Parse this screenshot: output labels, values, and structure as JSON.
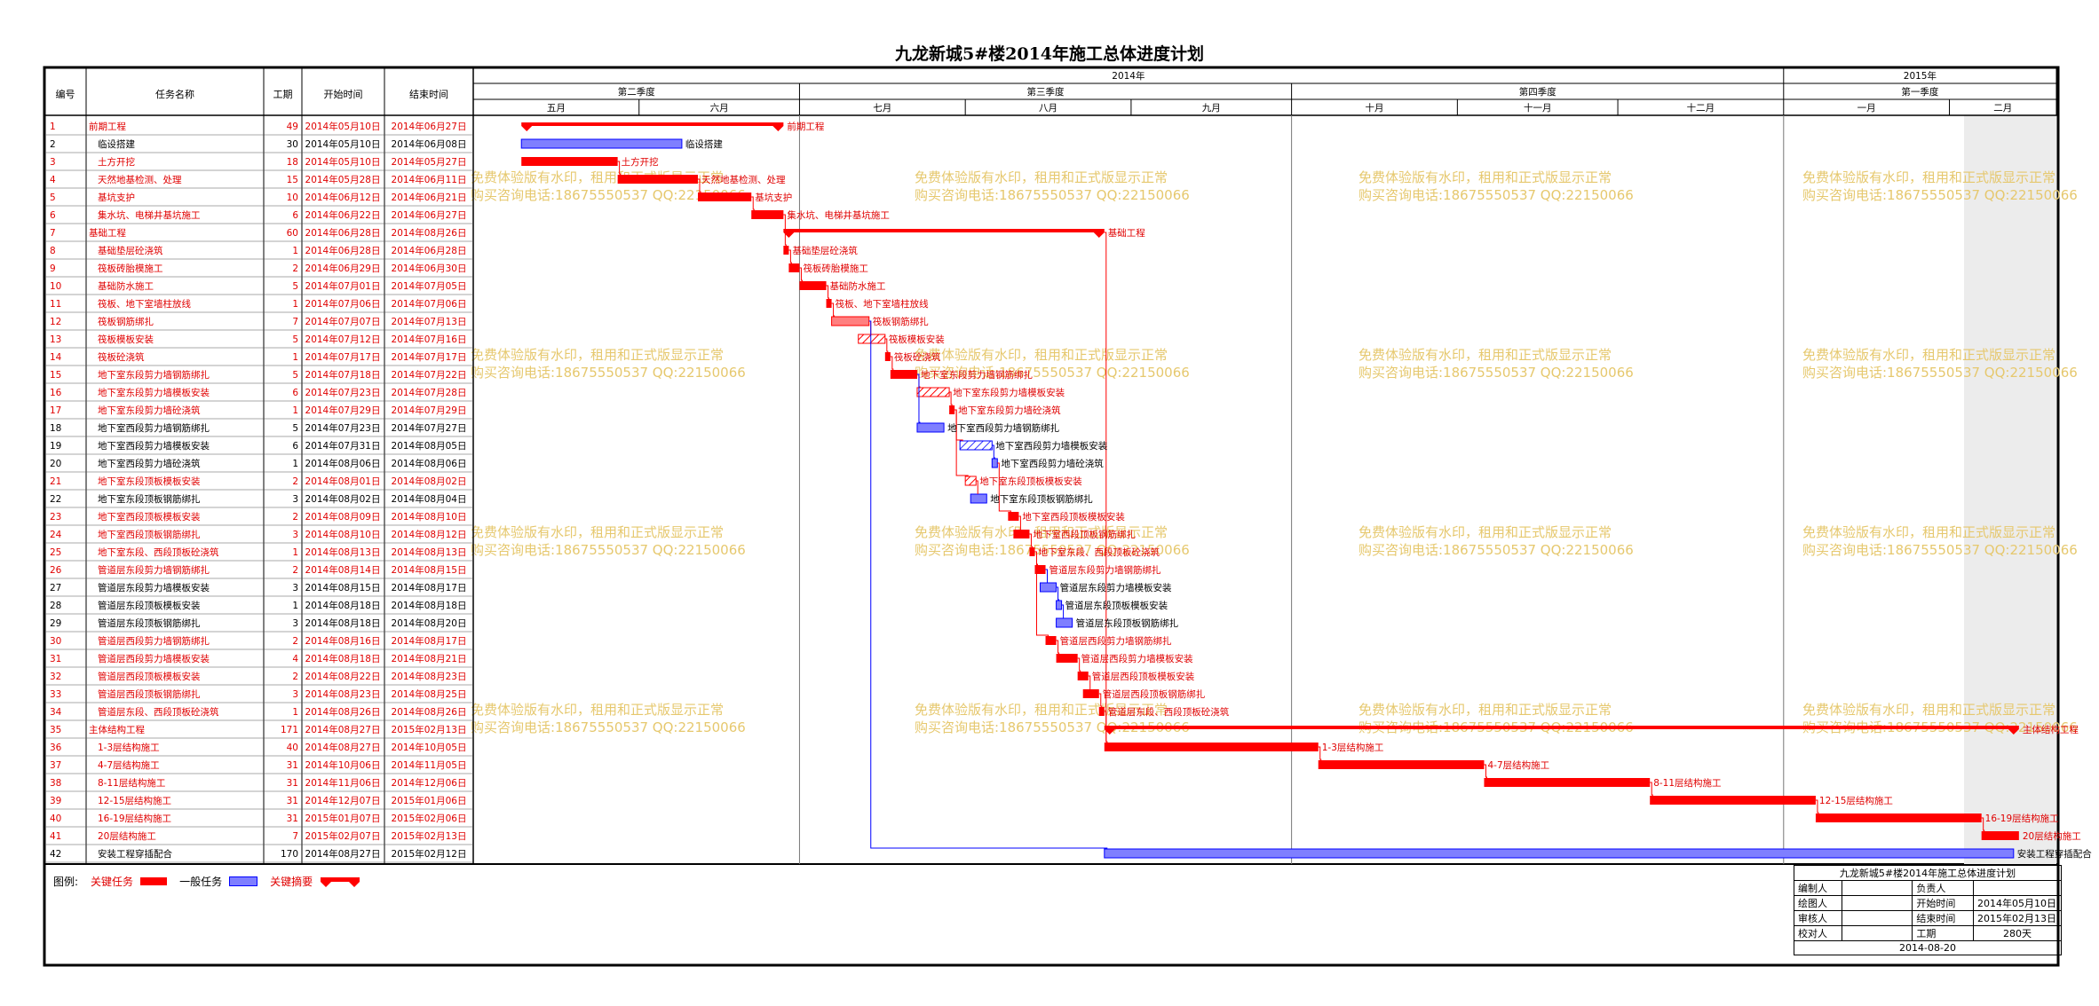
{
  "title": "九龙新城5#楼2014年施工总体进度计划",
  "table_headers": {
    "id": "编号",
    "name": "任务名称",
    "duration": "工期",
    "start": "开始时间",
    "end": "结束时间"
  },
  "timescale": {
    "years": [
      {
        "label": "2014年",
        "from": "2014-04-01",
        "to": "2015-01-01"
      },
      {
        "label": "2015年",
        "from": "2015-01-01",
        "to": "2015-04-01"
      }
    ],
    "quarters": [
      {
        "label": "第二季度",
        "from": "2014-04-01",
        "to": "2014-07-01"
      },
      {
        "label": "第三季度",
        "from": "2014-07-01",
        "to": "2014-10-01"
      },
      {
        "label": "第四季度",
        "from": "2014-10-01",
        "to": "2015-01-01"
      },
      {
        "label": "第一季度",
        "from": "2015-01-01",
        "to": "2015-04-01"
      }
    ],
    "months": [
      {
        "label": "五月",
        "from": "2014-05-01",
        "to": "2014-06-01"
      },
      {
        "label": "六月",
        "from": "2014-06-01",
        "to": "2014-07-01"
      },
      {
        "label": "七月",
        "from": "2014-07-01",
        "to": "2014-08-01"
      },
      {
        "label": "八月",
        "from": "2014-08-01",
        "to": "2014-09-01"
      },
      {
        "label": "九月",
        "from": "2014-09-01",
        "to": "2014-10-01"
      },
      {
        "label": "十月",
        "from": "2014-10-01",
        "to": "2014-11-01"
      },
      {
        "label": "十一月",
        "from": "2014-11-01",
        "to": "2014-12-01"
      },
      {
        "label": "十二月",
        "from": "2014-12-01",
        "to": "2015-01-01"
      },
      {
        "label": "一月",
        "from": "2015-01-01",
        "to": "2015-02-01"
      },
      {
        "label": "二月",
        "from": "2015-02-01",
        "to": "2015-03-01"
      }
    ]
  },
  "chart_data": {
    "type": "gantt",
    "x_range": [
      "2014-05-01",
      "2015-02-21"
    ],
    "tasks": [
      {
        "id": "1",
        "name": "前期工程",
        "duration": "49",
        "start": "2014年05月10日",
        "end": "2014年06月27日",
        "s": "2014-05-10",
        "e": "2014-06-27",
        "kind": "summary",
        "label": "前期工程"
      },
      {
        "id": "2",
        "name": "临设搭建",
        "duration": "30",
        "start": "2014年05月10日",
        "end": "2014年06月08日",
        "s": "2014-05-10",
        "e": "2014-06-08",
        "kind": "normal",
        "label": "临设搭建"
      },
      {
        "id": "3",
        "name": "土方开挖",
        "duration": "18",
        "start": "2014年05月10日",
        "end": "2014年05月27日",
        "s": "2014-05-10",
        "e": "2014-05-27",
        "kind": "critical",
        "label": "土方开挖"
      },
      {
        "id": "4",
        "name": "天然地基检测、处理",
        "duration": "15",
        "start": "2014年05月28日",
        "end": "2014年06月11日",
        "s": "2014-05-28",
        "e": "2014-06-11",
        "kind": "critical",
        "label": "天然地基检测、处理"
      },
      {
        "id": "5",
        "name": "基坑支护",
        "duration": "10",
        "start": "2014年06月12日",
        "end": "2014年06月21日",
        "s": "2014-06-12",
        "e": "2014-06-21",
        "kind": "critical",
        "label": "基坑支护"
      },
      {
        "id": "6",
        "name": "集水坑、电梯井基坑施工",
        "duration": "6",
        "start": "2014年06月22日",
        "end": "2014年06月27日",
        "s": "2014-06-22",
        "e": "2014-06-27",
        "kind": "critical",
        "label": "集水坑、电梯井基坑施工"
      },
      {
        "id": "7",
        "name": "基础工程",
        "duration": "60",
        "start": "2014年06月28日",
        "end": "2014年08月26日",
        "s": "2014-06-28",
        "e": "2014-08-26",
        "kind": "summary",
        "label": "基础工程"
      },
      {
        "id": "8",
        "name": "基础垫层砼浇筑",
        "duration": "1",
        "start": "2014年06月28日",
        "end": "2014年06月28日",
        "s": "2014-06-28",
        "e": "2014-06-28",
        "kind": "critical",
        "label": "基础垫层砼浇筑"
      },
      {
        "id": "9",
        "name": "筏板砖胎模施工",
        "duration": "2",
        "start": "2014年06月29日",
        "end": "2014年06月30日",
        "s": "2014-06-29",
        "e": "2014-06-30",
        "kind": "critical",
        "label": "筏板砖胎模施工"
      },
      {
        "id": "10",
        "name": "基础防水施工",
        "duration": "5",
        "start": "2014年07月01日",
        "end": "2014年07月05日",
        "s": "2014-07-01",
        "e": "2014-07-05",
        "kind": "critical",
        "label": "基础防水施工"
      },
      {
        "id": "11",
        "name": "筏板、地下室墙柱放线",
        "duration": "1",
        "start": "2014年07月06日",
        "end": "2014年07月06日",
        "s": "2014-07-06",
        "e": "2014-07-06",
        "kind": "critical",
        "label": "筏板、地下室墙柱放线"
      },
      {
        "id": "12",
        "name": "筏板钢筋绑扎",
        "duration": "7",
        "start": "2014年07月07日",
        "end": "2014年07月13日",
        "s": "2014-07-07",
        "e": "2014-07-13",
        "kind": "progress",
        "label": "筏板钢筋绑扎"
      },
      {
        "id": "13",
        "name": "筏板模板安装",
        "duration": "5",
        "start": "2014年07月12日",
        "end": "2014年07月16日",
        "s": "2014-07-12",
        "e": "2014-07-16",
        "kind": "hatch",
        "label": "筏板模板安装"
      },
      {
        "id": "14",
        "name": "筏板砼浇筑",
        "duration": "1",
        "start": "2014年07月17日",
        "end": "2014年07月17日",
        "s": "2014-07-17",
        "e": "2014-07-17",
        "kind": "critical",
        "label": "筏板砼浇筑"
      },
      {
        "id": "15",
        "name": "地下室东段剪力墙钢筋绑扎",
        "duration": "5",
        "start": "2014年07月18日",
        "end": "2014年07月22日",
        "s": "2014-07-18",
        "e": "2014-07-22",
        "kind": "critical",
        "label": "地下室东段剪力墙钢筋绑扎"
      },
      {
        "id": "16",
        "name": "地下室东段剪力墙模板安装",
        "duration": "6",
        "start": "2014年07月23日",
        "end": "2014年07月28日",
        "s": "2014-07-23",
        "e": "2014-07-28",
        "kind": "hatch",
        "label": "地下室东段剪力墙模板安装"
      },
      {
        "id": "17",
        "name": "地下室东段剪力墙砼浇筑",
        "duration": "1",
        "start": "2014年07月29日",
        "end": "2014年07月29日",
        "s": "2014-07-29",
        "e": "2014-07-29",
        "kind": "critical",
        "label": "地下室东段剪力墙砼浇筑"
      },
      {
        "id": "18",
        "name": "地下室西段剪力墙钢筋绑扎",
        "duration": "5",
        "start": "2014年07月23日",
        "end": "2014年07月27日",
        "s": "2014-07-23",
        "e": "2014-07-27",
        "kind": "normal",
        "label": "地下室西段剪力墙钢筋绑扎"
      },
      {
        "id": "19",
        "name": "地下室西段剪力墙模板安装",
        "duration": "6",
        "start": "2014年07月31日",
        "end": "2014年08月05日",
        "s": "2014-07-31",
        "e": "2014-08-05",
        "kind": "hatchblue",
        "label": "地下室西段剪力墙模板安装"
      },
      {
        "id": "20",
        "name": "地下室西段剪力墙砼浇筑",
        "duration": "1",
        "start": "2014年08月06日",
        "end": "2014年08月06日",
        "s": "2014-08-06",
        "e": "2014-08-06",
        "kind": "normal",
        "label": "地下室西段剪力墙砼浇筑"
      },
      {
        "id": "21",
        "name": "地下室东段顶板模板安装",
        "duration": "2",
        "start": "2014年08月01日",
        "end": "2014年08月02日",
        "s": "2014-08-01",
        "e": "2014-08-02",
        "kind": "hatch",
        "label": "地下室东段顶板模板安装"
      },
      {
        "id": "22",
        "name": "地下室东段顶板钢筋绑扎",
        "duration": "3",
        "start": "2014年08月02日",
        "end": "2014年08月04日",
        "s": "2014-08-02",
        "e": "2014-08-04",
        "kind": "normal",
        "label": "地下室东段顶板钢筋绑扎"
      },
      {
        "id": "23",
        "name": "地下室西段顶板模板安装",
        "duration": "2",
        "start": "2014年08月09日",
        "end": "2014年08月10日",
        "s": "2014-08-09",
        "e": "2014-08-10",
        "kind": "critical",
        "label": "地下室西段顶板模板安装"
      },
      {
        "id": "24",
        "name": "地下室西段顶板钢筋绑扎",
        "duration": "3",
        "start": "2014年08月10日",
        "end": "2014年08月12日",
        "s": "2014-08-10",
        "e": "2014-08-12",
        "kind": "critical",
        "label": "地下室西段顶板钢筋绑扎"
      },
      {
        "id": "25",
        "name": "地下室东段、西段顶板砼浇筑",
        "duration": "1",
        "start": "2014年08月13日",
        "end": "2014年08月13日",
        "s": "2014-08-13",
        "e": "2014-08-13",
        "kind": "critical",
        "label": "地下室东段、西段顶板砼浇筑"
      },
      {
        "id": "26",
        "name": "管道层东段剪力墙钢筋绑扎",
        "duration": "2",
        "start": "2014年08月14日",
        "end": "2014年08月15日",
        "s": "2014-08-14",
        "e": "2014-08-15",
        "kind": "critical",
        "label": "管道层东段剪力墙钢筋绑扎"
      },
      {
        "id": "27",
        "name": "管道层东段剪力墙模板安装",
        "duration": "3",
        "start": "2014年08月15日",
        "end": "2014年08月17日",
        "s": "2014-08-15",
        "e": "2014-08-17",
        "kind": "normal",
        "label": "管道层东段剪力墙模板安装"
      },
      {
        "id": "28",
        "name": "管道层东段顶板模板安装",
        "duration": "1",
        "start": "2014年08月18日",
        "end": "2014年08月18日",
        "s": "2014-08-18",
        "e": "2014-08-18",
        "kind": "normal",
        "label": "管道层东段顶板模板安装"
      },
      {
        "id": "29",
        "name": "管道层东段顶板钢筋绑扎",
        "duration": "3",
        "start": "2014年08月18日",
        "end": "2014年08月20日",
        "s": "2014-08-18",
        "e": "2014-08-20",
        "kind": "normal",
        "label": "管道层东段顶板钢筋绑扎"
      },
      {
        "id": "30",
        "name": "管道层西段剪力墙钢筋绑扎",
        "duration": "2",
        "start": "2014年08月16日",
        "end": "2014年08月17日",
        "s": "2014-08-16",
        "e": "2014-08-17",
        "kind": "critical",
        "label": "管道层西段剪力墙钢筋绑扎"
      },
      {
        "id": "31",
        "name": "管道层西段剪力墙模板安装",
        "duration": "4",
        "start": "2014年08月18日",
        "end": "2014年08月21日",
        "s": "2014-08-18",
        "e": "2014-08-21",
        "kind": "critical",
        "label": "管道层西段剪力墙模板安装"
      },
      {
        "id": "32",
        "name": "管道层西段顶板模板安装",
        "duration": "2",
        "start": "2014年08月22日",
        "end": "2014年08月23日",
        "s": "2014-08-22",
        "e": "2014-08-23",
        "kind": "critical",
        "label": "管道层西段顶板模板安装"
      },
      {
        "id": "33",
        "name": "管道层西段顶板钢筋绑扎",
        "duration": "3",
        "start": "2014年08月23日",
        "end": "2014年08月25日",
        "s": "2014-08-23",
        "e": "2014-08-25",
        "kind": "critical",
        "label": "管道层西段顶板钢筋绑扎"
      },
      {
        "id": "34",
        "name": "管道层东段、西段顶板砼浇筑",
        "duration": "1",
        "start": "2014年08月26日",
        "end": "2014年08月26日",
        "s": "2014-08-26",
        "e": "2014-08-26",
        "kind": "critical",
        "label": "管道层东段、西段顶板砼浇筑"
      },
      {
        "id": "35",
        "name": "主体结构工程",
        "duration": "171",
        "start": "2014年08月27日",
        "end": "2015年02月13日",
        "s": "2014-08-27",
        "e": "2015-02-13",
        "kind": "summary",
        "label": "主体结构工程"
      },
      {
        "id": "36",
        "name": "1-3层结构施工",
        "duration": "40",
        "start": "2014年08月27日",
        "end": "2014年10月05日",
        "s": "2014-08-27",
        "e": "2014-10-05",
        "kind": "critical",
        "label": "1-3层结构施工"
      },
      {
        "id": "37",
        "name": "4-7层结构施工",
        "duration": "31",
        "start": "2014年10月06日",
        "end": "2014年11月05日",
        "s": "2014-10-06",
        "e": "2014-11-05",
        "kind": "critical",
        "label": "4-7层结构施工"
      },
      {
        "id": "38",
        "name": "8-11层结构施工",
        "duration": "31",
        "start": "2014年11月06日",
        "end": "2014年12月06日",
        "s": "2014-11-06",
        "e": "2014-12-06",
        "kind": "critical",
        "label": "8-11层结构施工"
      },
      {
        "id": "39",
        "name": "12-15层结构施工",
        "duration": "31",
        "start": "2014年12月07日",
        "end": "2015年01月06日",
        "s": "2014-12-07",
        "e": "2015-01-06",
        "kind": "critical",
        "label": "12-15层结构施工"
      },
      {
        "id": "40",
        "name": "16-19层结构施工",
        "duration": "31",
        "start": "2015年01月07日",
        "end": "2015年02月06日",
        "s": "2015-01-07",
        "e": "2015-02-06",
        "kind": "critical",
        "label": "16-19层结构施工"
      },
      {
        "id": "41",
        "name": "20层结构施工",
        "duration": "7",
        "start": "2015年02月07日",
        "end": "2015年02月13日",
        "s": "2015-02-07",
        "e": "2015-02-13",
        "kind": "critical",
        "label": "20层结构施工"
      },
      {
        "id": "42",
        "name": "安装工程穿插配合",
        "duration": "170",
        "start": "2014年08月27日",
        "end": "2015年02月12日",
        "s": "2014-08-27",
        "e": "2015-02-12",
        "kind": "normal",
        "label": "安装工程穿插配合"
      }
    ]
  },
  "watermark": {
    "line1": "免费体验版有水印，租用和正式版显示正常",
    "line2": "购买咨询电话:18675550537 QQ:22150066"
  },
  "legend": {
    "prefix": "图例:",
    "critical": "关键任务",
    "normal": "一般任务",
    "summary": "关键摘要"
  },
  "info_box": {
    "title": "九龙新城5#楼2014年施工总体进度计划",
    "r1a": "编制人",
    "r1b": "",
    "r1c": "负责人",
    "r1d": "",
    "r2a": "绘图人",
    "r2b": "",
    "r2c": "开始时间",
    "r2d": "2014年05月10日",
    "r3a": "审核人",
    "r3b": "",
    "r3c": "结束时间",
    "r3d": "2015年02月13日",
    "r4a": "校对人",
    "r4b": "",
    "r4c": "工期",
    "r4d": "280天",
    "date": "2014-08-20"
  },
  "colors": {
    "critical": "#ff0000",
    "normal_fill": "#7f7fff",
    "normal_border": "#0000ff",
    "watermark": "#e6c86e",
    "red_text": "#e00000"
  }
}
